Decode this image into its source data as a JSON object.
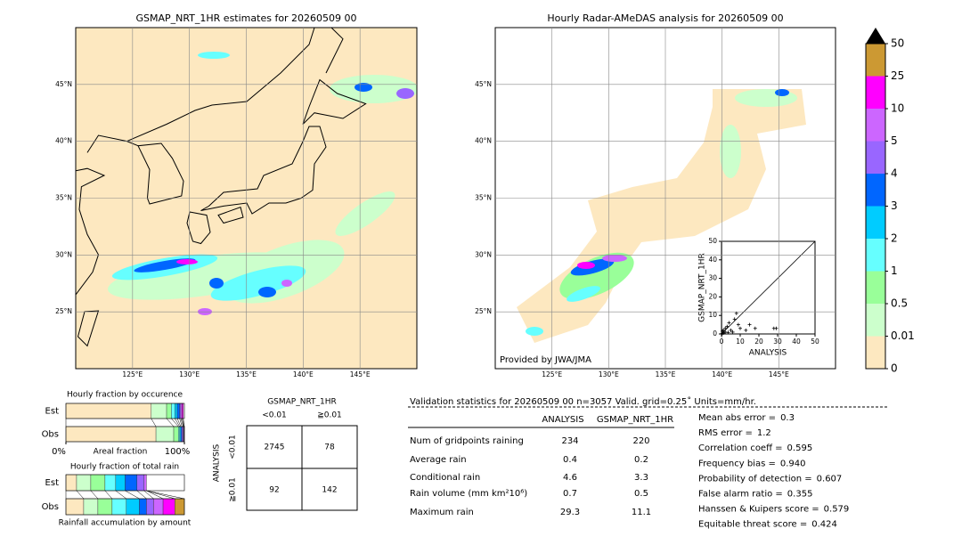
{
  "maps": [
    {
      "title": "GSMAP_NRT_1HR estimates for 20260509 00",
      "xlim": [
        120,
        150
      ],
      "ylim": [
        20,
        50
      ],
      "xticks": [
        {
          "value": 125,
          "label": "125°E"
        },
        {
          "value": 130,
          "label": "130°E"
        },
        {
          "value": 135,
          "label": "135°E"
        },
        {
          "value": 140,
          "label": "140°E"
        },
        {
          "value": 145,
          "label": "145°E"
        }
      ],
      "yticks": [
        {
          "value": 25,
          "label": "25°N"
        },
        {
          "value": 30,
          "label": "30°N"
        },
        {
          "value": 35,
          "label": "35°N"
        },
        {
          "value": 40,
          "label": "40°N"
        },
        {
          "value": 45,
          "label": "45°N"
        }
      ]
    },
    {
      "title": "Hourly Radar-AMeDAS analysis for 20260509 00",
      "credit": "Provided by JWA/JMA",
      "xlim": [
        120,
        150
      ],
      "ylim": [
        20,
        50
      ],
      "xticks": [
        {
          "value": 125,
          "label": "125°E"
        },
        {
          "value": 130,
          "label": "130°E"
        },
        {
          "value": 135,
          "label": "135°E"
        },
        {
          "value": 140,
          "label": "140°E"
        },
        {
          "value": 145,
          "label": "145°E"
        }
      ],
      "yticks": [
        {
          "value": 25,
          "label": "25°N"
        },
        {
          "value": 30,
          "label": "30°N"
        },
        {
          "value": 35,
          "label": "35°N"
        },
        {
          "value": 40,
          "label": "40°N"
        },
        {
          "value": 45,
          "label": "45°N"
        }
      ]
    }
  ],
  "colorbar": {
    "levels": [
      0,
      0.01,
      0.5,
      1,
      2,
      3,
      4,
      5,
      10,
      25,
      50
    ],
    "colors": [
      "#fde8c0",
      "#ccffcc",
      "#99ff99",
      "#66ffff",
      "#00ccff",
      "#0066ff",
      "#9966ff",
      "#cc66ff",
      "#ff00ff",
      "#cc9933"
    ],
    "extend_color": "#000000"
  },
  "scatter": {
    "xlabel": "ANALYSIS",
    "ylabel": "GSMAP_NRT_1HR",
    "xlim": [
      0,
      50
    ],
    "ylim": [
      0,
      50
    ],
    "xticks": [
      0,
      10,
      20,
      30,
      40,
      50
    ],
    "yticks": [
      0,
      10,
      20,
      30,
      40,
      50
    ],
    "x": [
      0.4,
      1,
      2,
      3,
      5,
      4,
      7,
      8,
      10,
      13,
      15,
      18,
      28,
      29.3,
      2,
      1,
      6,
      9,
      0.5,
      3.5
    ],
    "y": [
      0.2,
      0.5,
      1,
      4,
      2,
      6,
      8,
      11.1,
      3,
      2,
      5,
      3,
      3,
      3,
      3,
      2,
      1,
      5,
      1.5,
      0.8
    ]
  },
  "occurrence": {
    "title": "Hourly fraction by occurence",
    "rows": [
      "Est",
      "Obs"
    ],
    "values": [
      [
        72,
        13,
        4,
        3,
        2,
        2,
        1,
        1,
        1,
        0
      ],
      [
        76,
        15,
        4,
        1,
        1,
        1,
        1,
        0.5,
        0.3,
        0.2
      ]
    ],
    "xlabel": "Areal fraction",
    "xticks": [
      {
        "value": 0,
        "label": "0%"
      },
      {
        "value": 100,
        "label": "100%"
      }
    ]
  },
  "total_rain": {
    "title": "Hourly fraction of total rain",
    "rows": [
      "Est",
      "Obs"
    ],
    "values": [
      [
        9,
        12,
        12,
        9,
        8,
        10,
        6,
        2,
        0,
        0
      ],
      [
        15,
        12,
        12,
        12,
        11,
        6,
        6,
        8,
        10,
        8
      ]
    ],
    "xlabel": "Rainfall accumulation by amount"
  },
  "contingency": {
    "title": "GSMAP_NRT_1HR",
    "columns": [
      "<0.01",
      "≧0.01"
    ],
    "row_title": "ANALYSIS",
    "rows": [
      "<0.01",
      "≧0.01"
    ],
    "cells": [
      [
        2745,
        78
      ],
      [
        92,
        142
      ]
    ]
  },
  "stats": {
    "title": "Validation statistics for 20260509 00  n=3057 Valid. grid=0.25˚ Units=mm/hr.",
    "columns": [
      "ANALYSIS",
      "GSMAP_NRT_1HR"
    ],
    "rows": [
      {
        "name": "Num of gridpoints raining",
        "values": [
          234,
          220
        ]
      },
      {
        "name": "Average rain",
        "values": [
          0.4,
          0.2
        ]
      },
      {
        "name": "Conditional rain",
        "values": [
          4.6,
          3.3
        ]
      },
      {
        "name": "Rain volume (mm km²10⁶)",
        "values": [
          0.7,
          0.5
        ]
      },
      {
        "name": "Maximum rain",
        "values": [
          29.3,
          11.1
        ]
      }
    ],
    "scores": [
      {
        "label": "Mean abs error =",
        "value": "0.3"
      },
      {
        "label": "RMS error =",
        "value": "1.2"
      },
      {
        "label": "Correlation coeff =",
        "value": "0.595"
      },
      {
        "label": "Frequency bias =",
        "value": "0.940"
      },
      {
        "label": "Probability of detection =",
        "value": "0.607"
      },
      {
        "label": "False alarm ratio =",
        "value": "0.355"
      },
      {
        "label": "Hanssen & Kuipers score =",
        "value": "0.579"
      },
      {
        "label": "Equitable threat score =",
        "value": "0.424"
      }
    ]
  }
}
